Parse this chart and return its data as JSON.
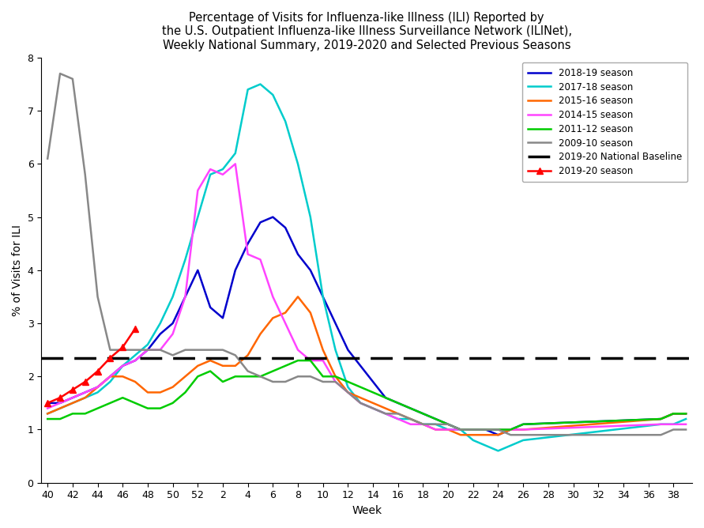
{
  "title": "Percentage of Visits for Influenza-like Illness (ILI) Reported by\nthe U.S. Outpatient Influenza-like Illness Surveillance Network (ILINet),\nWeekly National Summary, 2019-2020 and Selected Previous Seasons",
  "xlabel": "Week",
  "ylabel": "% of Visits for ILI",
  "ylim": [
    0,
    8
  ],
  "yticks": [
    0,
    1,
    2,
    3,
    4,
    5,
    6,
    7,
    8
  ],
  "baseline": 2.35,
  "background_color": "#ffffff",
  "seasons": {
    "2018-19 season": {
      "color": "#0000CC",
      "lw": 1.8,
      "x": [
        40,
        41,
        42,
        43,
        44,
        45,
        46,
        47,
        48,
        49,
        50,
        51,
        52,
        53,
        54,
        55,
        56,
        57,
        58,
        59,
        60,
        61,
        62,
        63,
        64,
        65,
        66,
        67,
        68,
        69,
        70,
        71,
        72,
        73,
        74,
        75,
        76,
        77,
        78,
        89,
        90,
        91
      ],
      "values": [
        1.5,
        1.5,
        1.6,
        1.7,
        1.8,
        2.0,
        2.2,
        2.3,
        2.5,
        2.8,
        3.0,
        3.5,
        4.0,
        3.3,
        3.1,
        4.0,
        4.5,
        4.9,
        5.0,
        4.8,
        4.3,
        4.0,
        3.5,
        3.0,
        2.5,
        2.2,
        1.9,
        1.6,
        1.5,
        1.4,
        1.3,
        1.2,
        1.1,
        1.0,
        1.0,
        1.0,
        0.9,
        1.0,
        1.1,
        1.2,
        1.3,
        1.3
      ]
    },
    "2017-18 season": {
      "color": "#00CCCC",
      "lw": 1.8,
      "x": [
        40,
        41,
        42,
        43,
        44,
        45,
        46,
        47,
        48,
        49,
        50,
        51,
        52,
        53,
        54,
        55,
        56,
        57,
        58,
        59,
        60,
        61,
        62,
        63,
        64,
        65,
        66,
        67,
        68,
        69,
        70,
        71,
        72,
        73,
        74,
        75,
        76,
        77,
        78,
        89,
        90,
        91
      ],
      "values": [
        1.3,
        1.4,
        1.5,
        1.6,
        1.7,
        1.9,
        2.2,
        2.4,
        2.6,
        3.0,
        3.5,
        4.2,
        5.0,
        5.8,
        5.9,
        6.2,
        7.4,
        7.5,
        7.3,
        6.8,
        6.0,
        5.0,
        3.5,
        2.5,
        1.8,
        1.5,
        1.4,
        1.3,
        1.2,
        1.2,
        1.1,
        1.1,
        1.0,
        1.0,
        0.8,
        0.7,
        0.6,
        0.7,
        0.8,
        1.1,
        1.1,
        1.2
      ]
    },
    "2015-16 season": {
      "color": "#FF6600",
      "lw": 1.8,
      "x": [
        40,
        41,
        42,
        43,
        44,
        45,
        46,
        47,
        48,
        49,
        50,
        51,
        52,
        53,
        54,
        55,
        56,
        57,
        58,
        59,
        60,
        61,
        62,
        63,
        64,
        65,
        66,
        67,
        68,
        69,
        70,
        71,
        72,
        73,
        74,
        75,
        76,
        77,
        78,
        89,
        90,
        91
      ],
      "values": [
        1.3,
        1.4,
        1.5,
        1.6,
        1.8,
        2.0,
        2.0,
        1.9,
        1.7,
        1.7,
        1.8,
        2.0,
        2.2,
        2.3,
        2.2,
        2.2,
        2.4,
        2.8,
        3.1,
        3.2,
        3.5,
        3.2,
        2.5,
        2.0,
        1.7,
        1.6,
        1.5,
        1.4,
        1.3,
        1.2,
        1.1,
        1.0,
        1.0,
        0.9,
        0.9,
        0.9,
        0.9,
        1.0,
        1.0,
        1.2,
        1.3,
        1.3
      ]
    },
    "2014-15 season": {
      "color": "#FF44FF",
      "lw": 1.8,
      "x": [
        40,
        41,
        42,
        43,
        44,
        45,
        46,
        47,
        48,
        49,
        50,
        51,
        52,
        53,
        54,
        55,
        56,
        57,
        58,
        59,
        60,
        61,
        62,
        63,
        64,
        65,
        66,
        67,
        68,
        69,
        70,
        71,
        72,
        73,
        74,
        75,
        76,
        77,
        78,
        89,
        90,
        91
      ],
      "values": [
        1.4,
        1.5,
        1.6,
        1.7,
        1.8,
        2.0,
        2.2,
        2.3,
        2.5,
        2.5,
        2.8,
        3.5,
        5.5,
        5.9,
        5.8,
        6.0,
        4.3,
        4.2,
        3.5,
        3.0,
        2.5,
        2.3,
        2.3,
        1.9,
        1.7,
        1.5,
        1.4,
        1.3,
        1.2,
        1.1,
        1.1,
        1.0,
        1.0,
        1.0,
        1.0,
        1.0,
        1.0,
        1.0,
        1.0,
        1.1,
        1.1,
        1.1
      ]
    },
    "2011-12 season": {
      "color": "#00CC00",
      "lw": 1.8,
      "x": [
        40,
        41,
        42,
        43,
        44,
        45,
        46,
        47,
        48,
        49,
        50,
        51,
        52,
        53,
        54,
        55,
        56,
        57,
        58,
        59,
        60,
        61,
        62,
        63,
        64,
        65,
        66,
        67,
        68,
        69,
        70,
        71,
        72,
        73,
        74,
        75,
        76,
        77,
        78,
        89,
        90,
        91
      ],
      "values": [
        1.2,
        1.2,
        1.3,
        1.3,
        1.4,
        1.5,
        1.6,
        1.5,
        1.4,
        1.4,
        1.5,
        1.7,
        2.0,
        2.1,
        1.9,
        2.0,
        2.0,
        2.0,
        2.1,
        2.2,
        2.3,
        2.3,
        2.0,
        2.0,
        1.9,
        1.8,
        1.7,
        1.6,
        1.5,
        1.4,
        1.3,
        1.2,
        1.1,
        1.0,
        1.0,
        1.0,
        1.0,
        1.0,
        1.1,
        1.2,
        1.3,
        1.3
      ]
    },
    "2009-10 season": {
      "color": "#888888",
      "lw": 1.8,
      "x": [
        40,
        41,
        42,
        43,
        44,
        45,
        46,
        47,
        48,
        49,
        50,
        51,
        52,
        53,
        54,
        55,
        56,
        57,
        58,
        59,
        60,
        61,
        62,
        63,
        64,
        65,
        66,
        67,
        68,
        69,
        70,
        71,
        72,
        73,
        74,
        75,
        76,
        77,
        78,
        89,
        90,
        91
      ],
      "values": [
        6.1,
        7.7,
        7.6,
        5.8,
        3.5,
        2.5,
        2.5,
        2.5,
        2.5,
        2.5,
        2.4,
        2.5,
        2.5,
        2.5,
        2.5,
        2.4,
        2.1,
        2.0,
        1.9,
        1.9,
        2.0,
        2.0,
        1.9,
        1.9,
        1.7,
        1.5,
        1.4,
        1.3,
        1.3,
        1.2,
        1.1,
        1.1,
        1.1,
        1.0,
        1.0,
        1.0,
        1.0,
        0.9,
        0.9,
        0.9,
        1.0,
        1.0
      ]
    },
    "2019-20 season": {
      "color": "#FF0000",
      "lw": 1.8,
      "marker": "^",
      "markersize": 6,
      "x": [
        40,
        41,
        42,
        43,
        44,
        45,
        46,
        47
      ],
      "values": [
        1.5,
        1.6,
        1.75,
        1.9,
        2.1,
        2.35,
        2.55,
        2.9
      ]
    }
  },
  "xtick_labels": [
    "40",
    "42",
    "44",
    "46",
    "48",
    "50",
    "52",
    "2",
    "4",
    "6",
    "8",
    "10",
    "12",
    "14",
    "16",
    "18",
    "20",
    "22",
    "24",
    "26",
    "28",
    "30",
    "32",
    "34",
    "36",
    "38"
  ],
  "xtick_x": [
    40,
    42,
    44,
    46,
    48,
    50,
    52,
    54,
    56,
    58,
    60,
    62,
    64,
    66,
    68,
    70,
    72,
    74,
    76,
    78,
    80,
    82,
    84,
    86,
    88,
    90
  ]
}
